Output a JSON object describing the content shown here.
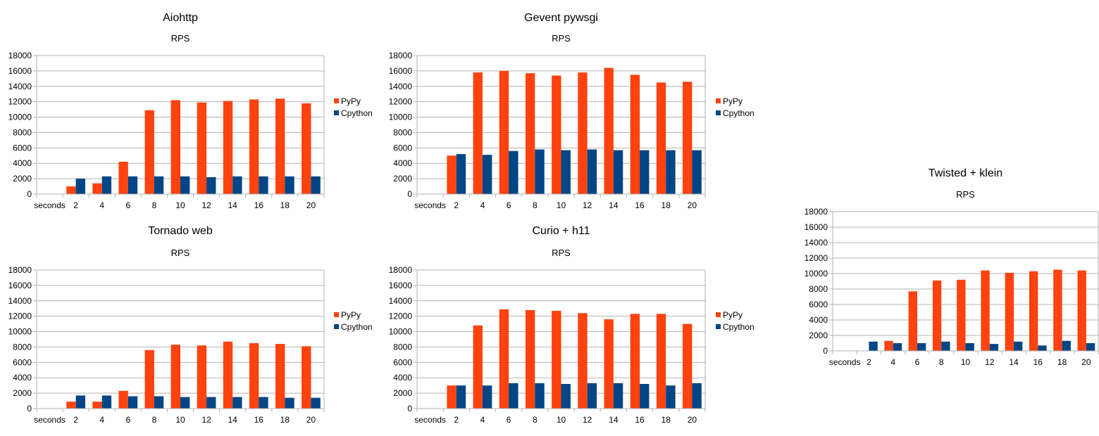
{
  "colors": {
    "pypy": "#ff420e",
    "cpython": "#004586"
  },
  "chart_data": [
    {
      "type": "bar",
      "title": "Aiohttp",
      "subtitle": "RPS",
      "categories": [
        "2",
        "4",
        "6",
        "8",
        "10",
        "12",
        "14",
        "16",
        "18",
        "20"
      ],
      "x_first_label": "seconds",
      "ylim": [
        0,
        18000
      ],
      "yticks": [
        "0",
        "2000",
        "4000",
        "6000",
        "8000",
        "10000",
        "12000",
        "14000",
        "16000",
        "18000"
      ],
      "grid": true,
      "legend": "right",
      "series": [
        {
          "name": "PyPy",
          "values": [
            1000,
            1400,
            4200,
            10900,
            12200,
            11900,
            12100,
            12300,
            12400,
            11800
          ]
        },
        {
          "name": "Cpython",
          "values": [
            2000,
            2300,
            2300,
            2300,
            2300,
            2200,
            2300,
            2300,
            2300,
            2300
          ]
        }
      ]
    },
    {
      "type": "bar",
      "title": "Gevent pywsgi",
      "subtitle": "RPS",
      "categories": [
        "2",
        "4",
        "6",
        "8",
        "10",
        "12",
        "14",
        "16",
        "18",
        "20"
      ],
      "x_first_label": "seconds",
      "ylim": [
        0,
        18000
      ],
      "yticks": [
        "0",
        "2000",
        "4000",
        "6000",
        "8000",
        "10000",
        "12000",
        "14000",
        "16000",
        "18000"
      ],
      "grid": true,
      "legend": "right",
      "series": [
        {
          "name": "PyPy",
          "values": [
            5000,
            15800,
            16000,
            15700,
            15400,
            15800,
            16400,
            15500,
            14500,
            14600
          ]
        },
        {
          "name": "Cpython",
          "values": [
            5200,
            5100,
            5600,
            5800,
            5700,
            5800,
            5700,
            5700,
            5700,
            5700
          ]
        }
      ]
    },
    {
      "type": "bar",
      "title": "Twisted + klein",
      "subtitle": "RPS",
      "categories": [
        "2",
        "4",
        "6",
        "8",
        "10",
        "12",
        "14",
        "16",
        "18",
        "20"
      ],
      "x_first_label": "seconds",
      "ylim": [
        0,
        18000
      ],
      "yticks": [
        "0",
        "2000",
        "4000",
        "6000",
        "8000",
        "10000",
        "12000",
        "14000",
        "16000",
        "18000"
      ],
      "grid": true,
      "legend": "none",
      "series": [
        {
          "name": "PyPy",
          "values": [
            0,
            1300,
            7700,
            9100,
            9200,
            10400,
            10100,
            10300,
            10500,
            10400
          ]
        },
        {
          "name": "Cpython",
          "values": [
            1200,
            1000,
            1000,
            1200,
            1000,
            900,
            1200,
            700,
            1300,
            1000
          ]
        }
      ]
    },
    {
      "type": "bar",
      "title": "Tornado web",
      "subtitle": "RPS",
      "categories": [
        "2",
        "4",
        "6",
        "8",
        "10",
        "12",
        "14",
        "16",
        "18",
        "20"
      ],
      "x_first_label": "seconds",
      "ylim": [
        0,
        18000
      ],
      "yticks": [
        "0",
        "2000",
        "4000",
        "6000",
        "8000",
        "10000",
        "12000",
        "14000",
        "16000",
        "18000"
      ],
      "grid": true,
      "legend": "right",
      "series": [
        {
          "name": "PyPy",
          "values": [
            900,
            900,
            2300,
            7600,
            8300,
            8200,
            8700,
            8500,
            8400,
            8100
          ]
        },
        {
          "name": "Cpython",
          "values": [
            1700,
            1700,
            1600,
            1600,
            1500,
            1500,
            1500,
            1500,
            1400,
            1400
          ]
        }
      ]
    },
    {
      "type": "bar",
      "title": "Curio + h11",
      "subtitle": "RPS",
      "categories": [
        "2",
        "4",
        "6",
        "8",
        "10",
        "12",
        "14",
        "16",
        "18",
        "20"
      ],
      "x_first_label": "seconds",
      "ylim": [
        0,
        18000
      ],
      "yticks": [
        "0",
        "2000",
        "4000",
        "6000",
        "8000",
        "10000",
        "12000",
        "14000",
        "16000",
        "18000"
      ],
      "grid": true,
      "legend": "right",
      "series": [
        {
          "name": "PyPy",
          "values": [
            3000,
            10800,
            12900,
            12800,
            12700,
            12400,
            11600,
            12300,
            12300,
            11000
          ]
        },
        {
          "name": "Cpython",
          "values": [
            3000,
            3000,
            3300,
            3300,
            3200,
            3300,
            3300,
            3200,
            3000,
            3300
          ]
        }
      ]
    }
  ]
}
